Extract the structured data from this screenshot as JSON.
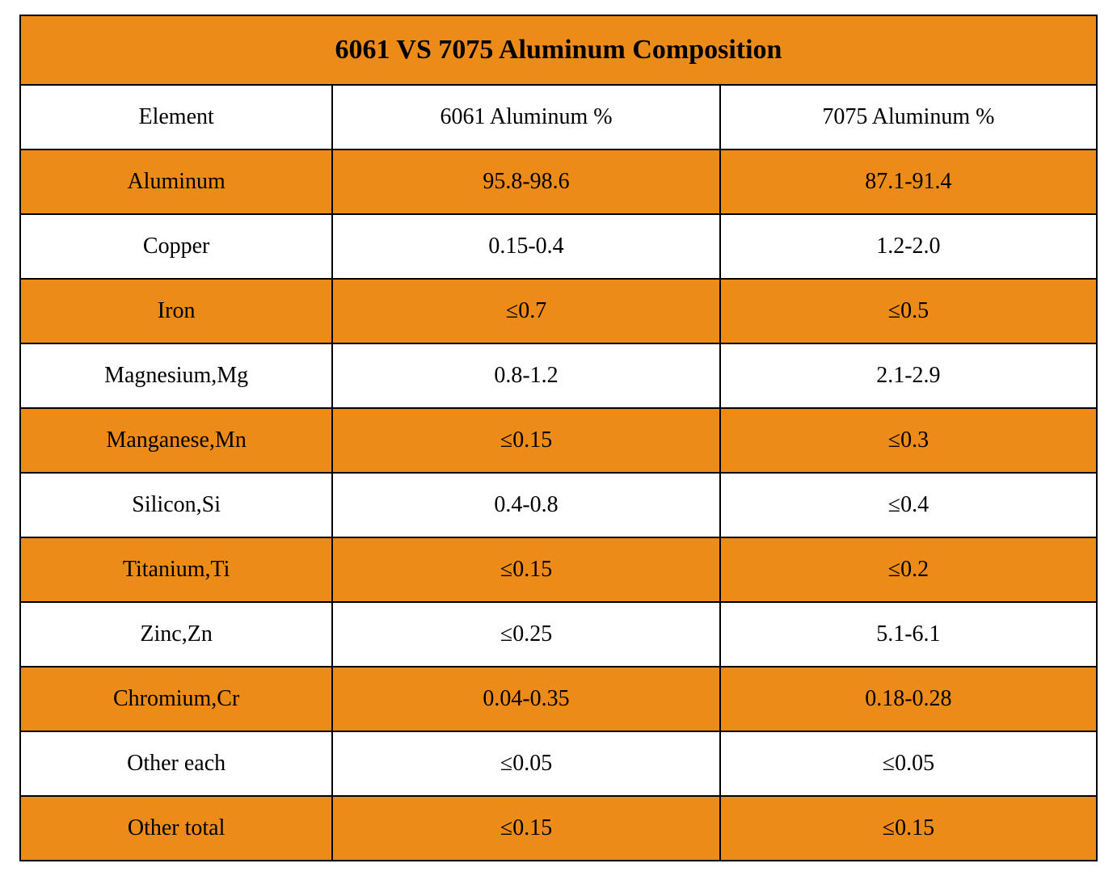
{
  "table": {
    "title": "6061 VS 7075 Aluminum Composition",
    "colors": {
      "header_bg": "#ed8b18",
      "row_alt_bg": "#ed8b18",
      "row_bg": "#ffffff",
      "border": "#000000",
      "text": "#000000"
    },
    "typography": {
      "title_fontsize_pt": 26,
      "cell_fontsize_pt": 21,
      "title_weight": "bold",
      "cell_weight": "normal",
      "font_family": "Times New Roman"
    },
    "column_widths_pct": [
      29,
      36,
      35
    ],
    "columns": [
      "Element",
      "6061 Aluminum %",
      "7075 Aluminum %"
    ],
    "rows": [
      {
        "cells": [
          "Aluminum",
          "95.8-98.6",
          "87.1-91.4"
        ],
        "highlight": true
      },
      {
        "cells": [
          "Copper",
          "0.15-0.4",
          "1.2-2.0"
        ],
        "highlight": false
      },
      {
        "cells": [
          "Iron",
          "≤0.7",
          "≤0.5"
        ],
        "highlight": true
      },
      {
        "cells": [
          "Magnesium,Mg",
          "0.8-1.2",
          "2.1-2.9"
        ],
        "highlight": false
      },
      {
        "cells": [
          "Manganese,Mn",
          "≤0.15",
          "≤0.3"
        ],
        "highlight": true
      },
      {
        "cells": [
          "Silicon,Si",
          "0.4-0.8",
          "≤0.4"
        ],
        "highlight": false
      },
      {
        "cells": [
          "Titanium,Ti",
          "≤0.15",
          "≤0.2"
        ],
        "highlight": true
      },
      {
        "cells": [
          "Zinc,Zn",
          "≤0.25",
          "5.1-6.1"
        ],
        "highlight": false
      },
      {
        "cells": [
          "Chromium,Cr",
          "0.04-0.35",
          "0.18-0.28"
        ],
        "highlight": true
      },
      {
        "cells": [
          "Other each",
          "≤0.05",
          "≤0.05"
        ],
        "highlight": false
      },
      {
        "cells": [
          "Other total",
          "≤0.15",
          "≤0.15"
        ],
        "highlight": true
      }
    ]
  }
}
